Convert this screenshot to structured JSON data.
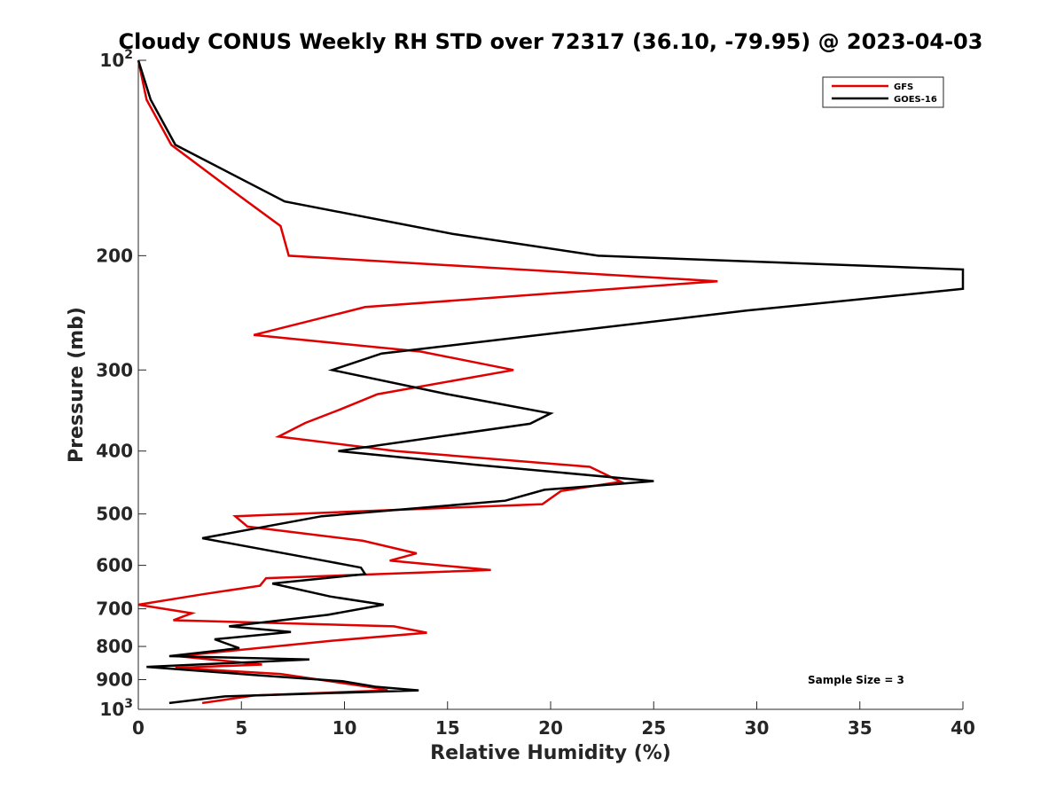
{
  "chart_data": {
    "type": "line",
    "title": "Cloudy CONUS Weekly RH STD over 72317 (36.10, -79.95) @ 2023-04-03",
    "xlabel": "Relative Humidity (%)",
    "ylabel": "Pressure (mb)",
    "xlim": [
      0,
      40
    ],
    "ylim": [
      100,
      1000
    ],
    "y_scale": "log",
    "y_reversed": true,
    "x_ticks": [
      0,
      5,
      10,
      15,
      20,
      25,
      30,
      35,
      40
    ],
    "x_tick_labels": [
      "0",
      "5",
      "10",
      "15",
      "20",
      "25",
      "30",
      "35",
      "40"
    ],
    "y_ticks": [
      200,
      300,
      400,
      500,
      600,
      700,
      800,
      900
    ],
    "y_tick_labels": [
      "200",
      "300",
      "400",
      "500",
      "600",
      "700",
      "800",
      "900"
    ],
    "y_edge_labels": [
      {
        "value": 100,
        "base": "10",
        "exp": "2"
      },
      {
        "value": 1000,
        "base": "10",
        "exp": "3"
      }
    ],
    "grid": false,
    "legend_position": "top-right",
    "annotation": "Sample Size = 3",
    "series": [
      {
        "name": "GFS",
        "color": "#e00000",
        "points": [
          [
            0.0,
            100
          ],
          [
            0.4,
            115
          ],
          [
            1.6,
            135
          ],
          [
            4.7,
            160
          ],
          [
            6.9,
            180
          ],
          [
            7.3,
            200
          ],
          [
            28.1,
            219
          ],
          [
            11.0,
            240
          ],
          [
            5.6,
            265
          ],
          [
            13.7,
            281
          ],
          [
            18.2,
            300
          ],
          [
            11.6,
            327
          ],
          [
            9.8,
            345
          ],
          [
            8.1,
            362
          ],
          [
            6.8,
            380
          ],
          [
            12.5,
            400
          ],
          [
            21.9,
            423
          ],
          [
            23.4,
            446
          ],
          [
            20.5,
            461
          ],
          [
            19.6,
            483
          ],
          [
            4.7,
            504
          ],
          [
            5.3,
            523
          ],
          [
            10.9,
            550
          ],
          [
            13.5,
            575
          ],
          [
            12.2,
            590
          ],
          [
            17.1,
            610
          ],
          [
            6.2,
            628
          ],
          [
            5.9,
            645
          ],
          [
            3.1,
            665
          ],
          [
            0.0,
            690
          ],
          [
            2.6,
            711
          ],
          [
            1.7,
            729
          ],
          [
            12.4,
            745
          ],
          [
            14.0,
            762
          ],
          [
            9.4,
            784
          ],
          [
            1.9,
            828
          ],
          [
            6.0,
            853
          ],
          [
            1.8,
            863
          ],
          [
            6.9,
            882
          ],
          [
            11.3,
            925
          ],
          [
            12.1,
            935
          ],
          [
            5.6,
            952
          ],
          [
            3.1,
            978
          ]
        ]
      },
      {
        "name": "GOES-16",
        "color": "#000000",
        "points": [
          [
            0.0,
            100
          ],
          [
            0.6,
            115
          ],
          [
            1.8,
            135
          ],
          [
            7.1,
            165
          ],
          [
            15.2,
            185
          ],
          [
            22.3,
            200
          ],
          [
            40.0,
            210
          ],
          [
            40.0,
            225
          ],
          [
            29.5,
            243
          ],
          [
            11.8,
            283
          ],
          [
            9.4,
            300
          ],
          [
            15.0,
            327
          ],
          [
            20.0,
            350
          ],
          [
            19.0,
            363
          ],
          [
            9.7,
            400
          ],
          [
            16.4,
            420
          ],
          [
            25.0,
            445
          ],
          [
            19.7,
            459
          ],
          [
            17.8,
            477
          ],
          [
            8.9,
            504
          ],
          [
            3.1,
            545
          ],
          [
            9.0,
            590
          ],
          [
            10.8,
            605
          ],
          [
            11.0,
            619
          ],
          [
            6.5,
            640
          ],
          [
            9.3,
            670
          ],
          [
            11.9,
            690
          ],
          [
            9.2,
            715
          ],
          [
            4.4,
            745
          ],
          [
            7.4,
            760
          ],
          [
            3.7,
            780
          ],
          [
            4.9,
            805
          ],
          [
            1.5,
            828
          ],
          [
            8.3,
            838
          ],
          [
            0.4,
            860
          ],
          [
            5.6,
            885
          ],
          [
            9.9,
            905
          ],
          [
            11.5,
            923
          ],
          [
            13.6,
            935
          ],
          [
            4.2,
            955
          ],
          [
            1.5,
            978
          ]
        ]
      }
    ]
  }
}
